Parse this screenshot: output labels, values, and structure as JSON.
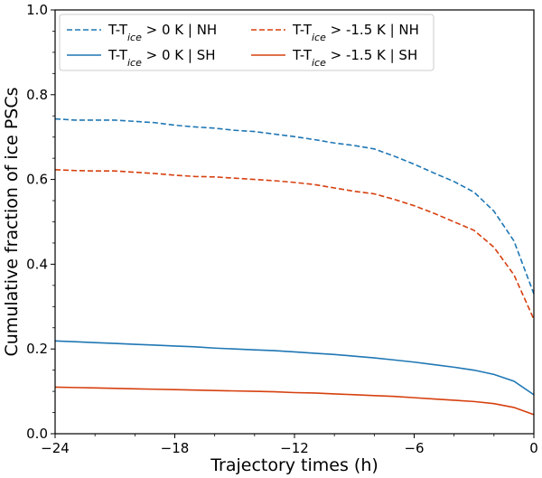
{
  "chart_data": {
    "type": "line",
    "title": "",
    "xlabel": "Trajectory times (h)",
    "ylabel": "Cumulative fraction of ice PSCs",
    "xlim": [
      -24,
      0
    ],
    "ylim": [
      0.0,
      1.0
    ],
    "xticks": [
      -24,
      -18,
      -12,
      -6,
      0
    ],
    "xtick_labels": [
      "−24",
      "−18",
      "−12",
      "−6",
      "0"
    ],
    "yticks": [
      0.0,
      0.2,
      0.4,
      0.6,
      0.8,
      1.0
    ],
    "ytick_labels": [
      "0.0",
      "0.2",
      "0.4",
      "0.6",
      "0.8",
      "1.0"
    ],
    "grid": false,
    "legend_position": "top",
    "x": [
      -24,
      -23,
      -22,
      -21,
      -20,
      -19,
      -18,
      -17,
      -16,
      -15,
      -14,
      -13,
      -12,
      -11,
      -10,
      -9,
      -8,
      -7,
      -6,
      -5,
      -4,
      -3,
      -2,
      -1,
      0
    ],
    "series": [
      {
        "name": "T-T_ice > 0 K | NH",
        "label_prefix": "T-T",
        "label_sub": "ice",
        "label_suffix": " > 0 K | NH",
        "color": "#1f77b4",
        "dash": "dashed",
        "values": [
          0.743,
          0.74,
          0.74,
          0.74,
          0.737,
          0.734,
          0.728,
          0.724,
          0.721,
          0.716,
          0.713,
          0.707,
          0.701,
          0.694,
          0.686,
          0.68,
          0.672,
          0.655,
          0.636,
          0.615,
          0.595,
          0.57,
          0.525,
          0.455,
          0.33
        ]
      },
      {
        "name": "T-T_ice > 0 K | SH",
        "label_prefix": "T-T",
        "label_sub": "ice",
        "label_suffix": " > 0 K | SH",
        "color": "#1f77b4",
        "dash": "solid",
        "values": [
          0.219,
          0.217,
          0.215,
          0.213,
          0.211,
          0.209,
          0.207,
          0.205,
          0.202,
          0.2,
          0.198,
          0.196,
          0.193,
          0.19,
          0.187,
          0.183,
          0.179,
          0.174,
          0.169,
          0.163,
          0.157,
          0.15,
          0.14,
          0.124,
          0.092
        ]
      },
      {
        "name": "T-T_ice > -1.5 K | NH",
        "label_prefix": "T-T",
        "label_sub": "ice",
        "label_suffix": " > -1.5 K | NH",
        "color": "#d6400f",
        "dash": "dashed",
        "values": [
          0.623,
          0.621,
          0.62,
          0.62,
          0.617,
          0.614,
          0.61,
          0.607,
          0.606,
          0.603,
          0.6,
          0.597,
          0.593,
          0.588,
          0.58,
          0.572,
          0.566,
          0.553,
          0.538,
          0.52,
          0.5,
          0.48,
          0.44,
          0.375,
          0.27
        ]
      },
      {
        "name": "T-T_ice > -1.5 K | SH",
        "label_prefix": "T-T",
        "label_sub": "ice",
        "label_suffix": " > -1.5 K | SH",
        "color": "#d6400f",
        "dash": "solid",
        "values": [
          0.11,
          0.109,
          0.108,
          0.107,
          0.106,
          0.105,
          0.104,
          0.103,
          0.102,
          0.101,
          0.1,
          0.099,
          0.097,
          0.096,
          0.094,
          0.092,
          0.09,
          0.088,
          0.085,
          0.082,
          0.079,
          0.076,
          0.071,
          0.062,
          0.045
        ]
      }
    ]
  }
}
